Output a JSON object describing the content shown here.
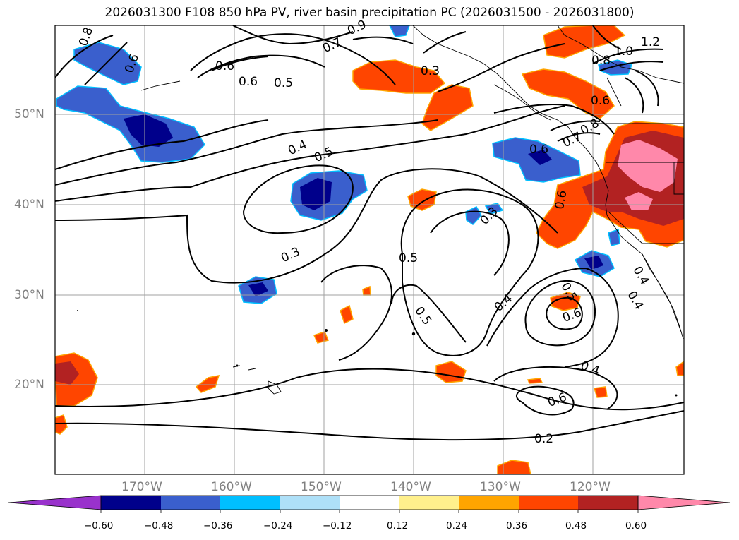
{
  "title": "2026031300 F108 850 hPa PV, river basin precipitation PC (2026031500 - 2026031800)",
  "lat_labels": [
    "50°N",
    "40°N",
    "30°N",
    "20°N"
  ],
  "lon_labels": [
    "170°W",
    "160°W",
    "150°W",
    "140°W",
    "130°W",
    "120°W"
  ],
  "contour_labels": [
    "1.2",
    "1.0",
    "0.8",
    "0.6",
    "0.3",
    "0.7",
    "0.9",
    "0.8",
    "0.6",
    "0.5",
    "0.6",
    "0.4",
    "0.5",
    "0.6",
    "0.7",
    "0.8",
    "0.6",
    "0.3",
    "0.5",
    "0.3",
    "0.5",
    "0.4",
    "0.5",
    "0.6",
    "0.4",
    "0.6",
    "0.2",
    "0.4",
    "0.4",
    "0.6"
  ],
  "colorbar": {
    "ticks": [
      "−0.60",
      "−0.48",
      "−0.36",
      "−0.24",
      "−0.12",
      "0.12",
      "0.24",
      "0.36",
      "0.48",
      "0.60"
    ],
    "colors": [
      "#9932cc",
      "#00008b",
      "#3a5fcd",
      "#00bfff",
      "#aee0f8",
      "#ffffff",
      "#fff08c",
      "#ffa500",
      "#ff4500",
      "#b22222",
      "#ff88aa"
    ]
  }
}
